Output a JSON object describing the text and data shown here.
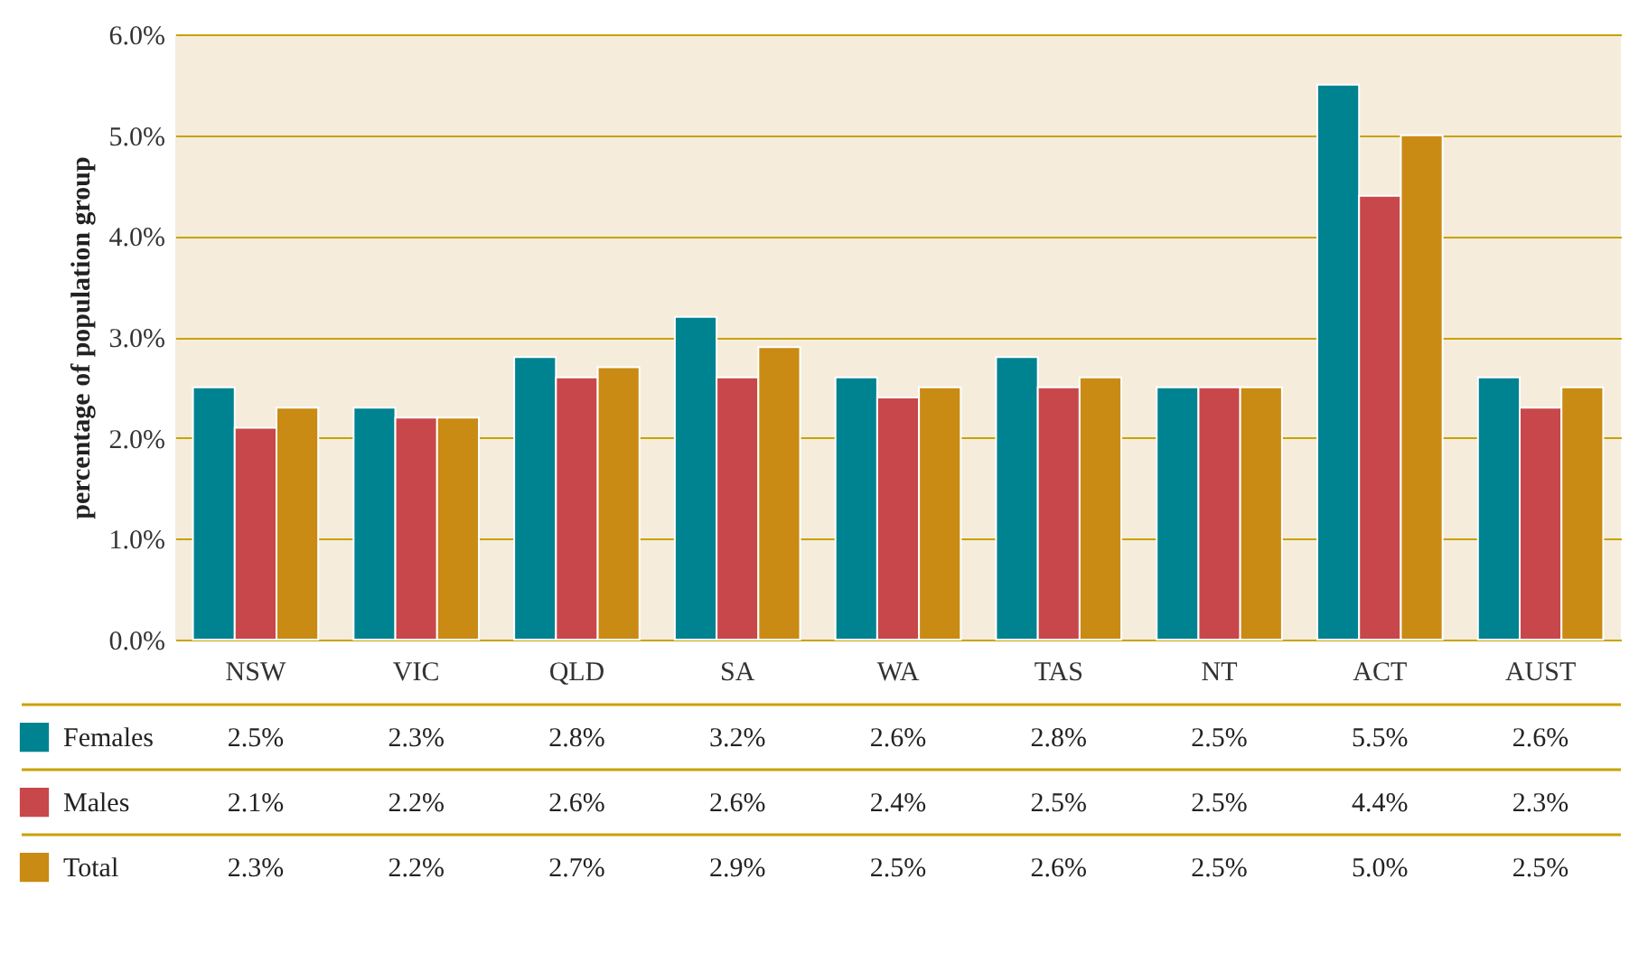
{
  "chart_data": {
    "type": "bar",
    "ylabel": "percentage of population group",
    "categories": [
      "NSW",
      "VIC",
      "QLD",
      "SA",
      "WA",
      "TAS",
      "NT",
      "ACT",
      "AUST"
    ],
    "series": [
      {
        "name": "Females",
        "color": "#008391",
        "values": [
          2.5,
          2.3,
          2.8,
          3.2,
          2.6,
          2.8,
          2.5,
          5.5,
          2.6
        ],
        "value_labels": [
          "2.5%",
          "2.3%",
          "2.8%",
          "3.2%",
          "2.6%",
          "2.8%",
          "2.5%",
          "5.5%",
          "2.6%"
        ]
      },
      {
        "name": "Males",
        "color": "#c8474a",
        "values": [
          2.1,
          2.2,
          2.6,
          2.6,
          2.4,
          2.5,
          2.5,
          4.4,
          2.3
        ],
        "value_labels": [
          "2.1%",
          "2.2%",
          "2.6%",
          "2.6%",
          "2.4%",
          "2.5%",
          "2.5%",
          "4.4%",
          "2.3%"
        ]
      },
      {
        "name": "Total",
        "color": "#c98b14",
        "values": [
          2.3,
          2.2,
          2.7,
          2.9,
          2.5,
          2.6,
          2.5,
          5.0,
          2.5
        ],
        "value_labels": [
          "2.3%",
          "2.2%",
          "2.7%",
          "2.9%",
          "2.5%",
          "2.6%",
          "2.5%",
          "5.0%",
          "2.5%"
        ]
      }
    ],
    "ylim": [
      0,
      6
    ],
    "yticks": [
      {
        "value": 0,
        "label": "0.0%"
      },
      {
        "value": 1,
        "label": "1.0%"
      },
      {
        "value": 2,
        "label": "2.0%"
      },
      {
        "value": 3,
        "label": "3.0%"
      },
      {
        "value": 4,
        "label": "4.0%"
      },
      {
        "value": 5,
        "label": "5.0%"
      },
      {
        "value": 6,
        "label": "6.0%"
      }
    ],
    "grid": "y",
    "legend": "bottom"
  }
}
